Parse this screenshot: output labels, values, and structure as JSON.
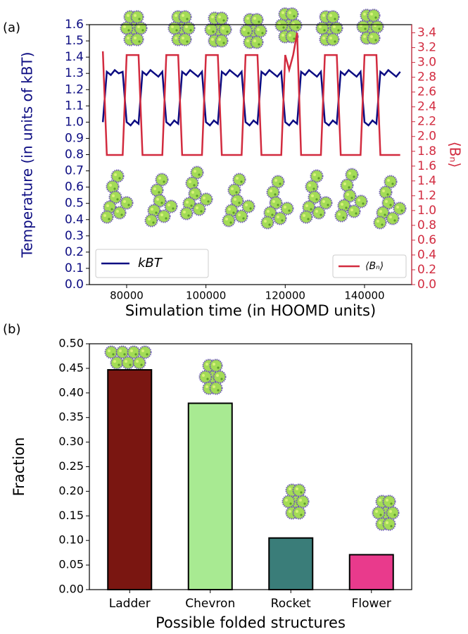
{
  "chart_data": [
    {
      "type": "line",
      "panel_label": "(a)",
      "xlabel": "Simulation time (in HOOMD units)",
      "ylabel": "Temperature (in units of kBT)",
      "y2label": "⟨Bₙ⟩",
      "x": [
        74000,
        75000,
        76000,
        77000,
        78000,
        79000,
        80000,
        81000,
        82000,
        83000,
        84000,
        85000,
        86000,
        87000,
        88000,
        89000,
        90000,
        91000,
        92000,
        93000,
        94000,
        95000,
        96000,
        97000,
        98000,
        99000,
        100000,
        101000,
        102000,
        103000,
        104000,
        105000,
        106000,
        107000,
        108000,
        109000,
        110000,
        111000,
        112000,
        113000,
        114000,
        115000,
        116000,
        117000,
        118000,
        119000,
        120000,
        121000,
        122000,
        123000,
        124000,
        125000,
        126000,
        127000,
        128000,
        129000,
        130000,
        131000,
        132000,
        133000,
        134000,
        135000,
        136000,
        137000,
        138000,
        139000,
        140000,
        141000,
        142000,
        143000,
        144000,
        145000,
        146000,
        147000,
        148000,
        149000
      ],
      "xlim": [
        70600,
        151900
      ],
      "xticks": [
        80000,
        100000,
        120000,
        140000
      ],
      "ylim": [
        0,
        1.6
      ],
      "yticks": [
        {
          "value": 0,
          "label": "0.0"
        },
        0.1,
        0.2,
        0.3,
        0.4,
        0.5,
        0.6,
        0.7,
        0.8,
        0.9,
        {
          "value": 1,
          "label": "1.0"
        },
        1.1,
        1.2,
        1.3,
        1.4,
        1.5,
        1.6
      ],
      "y2lim": [
        0,
        3.51
      ],
      "y2ticks": [
        {
          "value": 0,
          "label": "0.0"
        },
        0.2,
        0.4,
        0.6,
        0.8,
        {
          "value": 1,
          "label": "1.0"
        },
        1.2,
        1.4,
        1.6,
        1.8,
        {
          "value": 2,
          "label": "2.0"
        },
        2.2,
        2.4,
        2.6,
        2.8,
        {
          "value": 3,
          "label": "3.0"
        },
        3.2,
        3.4
      ],
      "series": [
        {
          "name": "kBT",
          "color": "#0c0c82",
          "legend": "lower left",
          "values": [
            1.0,
            1.31,
            1.29,
            1.32,
            1.3,
            1.31,
            1.0,
            0.98,
            1.01,
            0.99,
            1.31,
            1.29,
            1.32,
            1.3,
            1.28,
            1.31,
            1.0,
            0.98,
            1.01,
            0.99,
            1.31,
            1.29,
            1.32,
            1.3,
            1.28,
            1.31,
            1.0,
            0.98,
            1.01,
            0.99,
            1.31,
            1.29,
            1.32,
            1.3,
            1.28,
            1.31,
            1.0,
            0.98,
            1.01,
            0.99,
            1.31,
            1.29,
            1.32,
            1.3,
            1.28,
            1.31,
            1.0,
            0.98,
            1.01,
            0.99,
            1.31,
            1.29,
            1.32,
            1.3,
            1.28,
            1.31,
            1.0,
            0.98,
            1.01,
            0.99,
            1.31,
            1.29,
            1.32,
            1.3,
            1.28,
            1.31,
            1.0,
            0.98,
            1.01,
            0.99,
            1.31,
            1.29,
            1.32,
            1.3,
            1.28,
            1.31
          ]
        },
        {
          "name": "⟨Bₙ⟩",
          "color": "#d22b3f",
          "axis": "y2",
          "legend": "lower right",
          "values": [
            3.15,
            1.75,
            1.75,
            1.75,
            1.75,
            1.75,
            3.1,
            3.1,
            3.1,
            3.1,
            1.75,
            1.75,
            1.75,
            1.75,
            1.75,
            1.75,
            3.1,
            3.1,
            3.1,
            3.1,
            1.75,
            1.75,
            1.75,
            1.75,
            1.75,
            1.75,
            3.1,
            3.1,
            3.1,
            3.1,
            1.75,
            1.75,
            1.75,
            1.75,
            1.75,
            1.75,
            3.1,
            3.1,
            3.1,
            3.1,
            1.75,
            1.75,
            1.75,
            1.75,
            1.75,
            1.75,
            3.1,
            2.9,
            3.1,
            3.4,
            1.75,
            1.75,
            1.75,
            1.75,
            1.75,
            1.75,
            3.1,
            3.1,
            3.1,
            3.1,
            1.75,
            1.75,
            1.75,
            1.75,
            1.75,
            1.75,
            3.1,
            3.1,
            3.1,
            3.1,
            1.75,
            1.75,
            1.75,
            1.75,
            1.75,
            1.75
          ]
        }
      ]
    },
    {
      "type": "bar",
      "panel_label": "(b)",
      "xlabel": "Possible folded structures",
      "ylabel": "Fraction",
      "categories": [
        "Ladder",
        "Chevron",
        "Rocket",
        "Flower"
      ],
      "values": [
        0.447,
        0.379,
        0.105,
        0.071
      ],
      "colors": [
        "#7a1611",
        "#a8ea92",
        "#3a7d79",
        "#e93a8c"
      ],
      "ylim": [
        0,
        0.5
      ],
      "yticks": [
        {
          "value": 0,
          "label": "0.00"
        },
        0.05,
        {
          "value": 0.1,
          "label": "0.10"
        },
        0.15,
        {
          "value": 0.2,
          "label": "0.20"
        },
        0.25,
        {
          "value": 0.3,
          "label": "0.30"
        },
        0.35,
        {
          "value": 0.4,
          "label": "0.40"
        },
        0.45,
        {
          "value": 0.5,
          "label": "0.50"
        }
      ]
    }
  ]
}
